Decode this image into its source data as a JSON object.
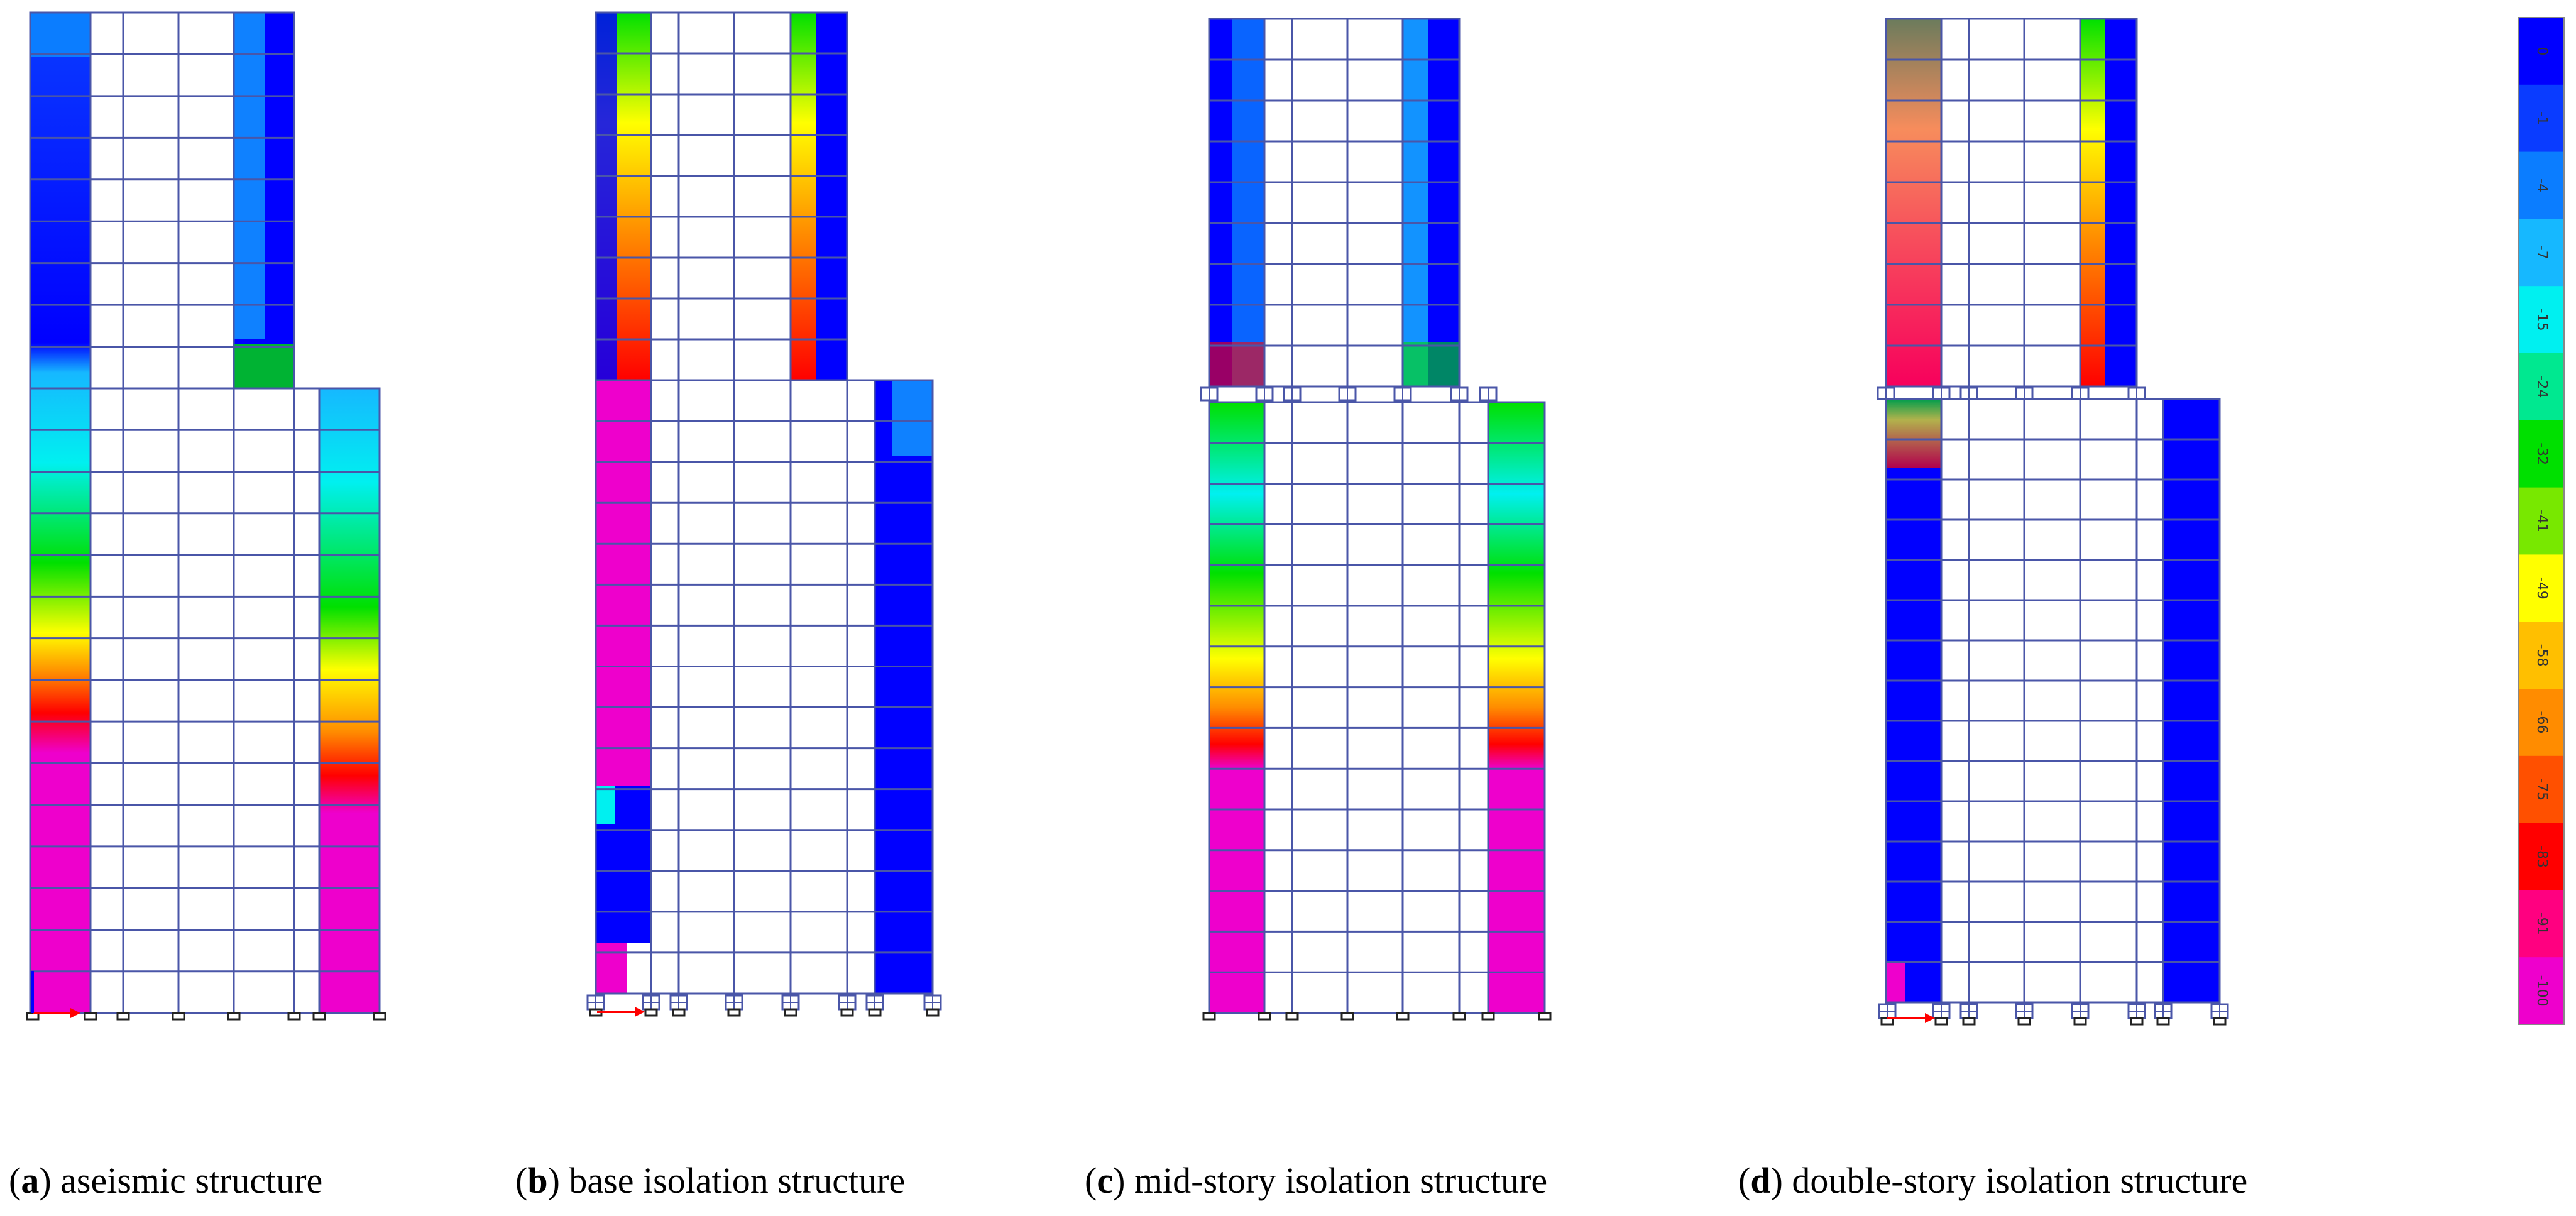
{
  "figure": {
    "panels": [
      {
        "letter": "a",
        "text": "aseismic structure"
      },
      {
        "letter": "b",
        "text": "base isolation structure"
      },
      {
        "letter": "c",
        "text": "mid-story isolation structure"
      },
      {
        "letter": "d",
        "text": "double-story isolation structure"
      }
    ],
    "colorbar": {
      "ticks": [
        "0",
        "-1",
        "-4",
        "-7",
        "-15",
        "-24",
        "-32",
        "-41",
        "-49",
        "-58",
        "-66",
        "-75",
        "-83",
        "-91",
        "-100"
      ],
      "colors": [
        "#0000ff",
        "#0a3cff",
        "#0b7dff",
        "#16b8ff",
        "#00f0f0",
        "#00e890",
        "#00e000",
        "#78e800",
        "#ffff00",
        "#ffbf00",
        "#ff8c00",
        "#ff5000",
        "#ff0000",
        "#ff0080",
        "#ee00cc"
      ]
    },
    "palette": {
      "frame": "#4a56a8",
      "blue": "#0000ff",
      "magenta": "#ee00cc",
      "cyan": "#00e6ff",
      "green": "#00e000",
      "yellow": "#ffff00",
      "orange": "#ff8c00",
      "red": "#ff0000"
    }
  }
}
